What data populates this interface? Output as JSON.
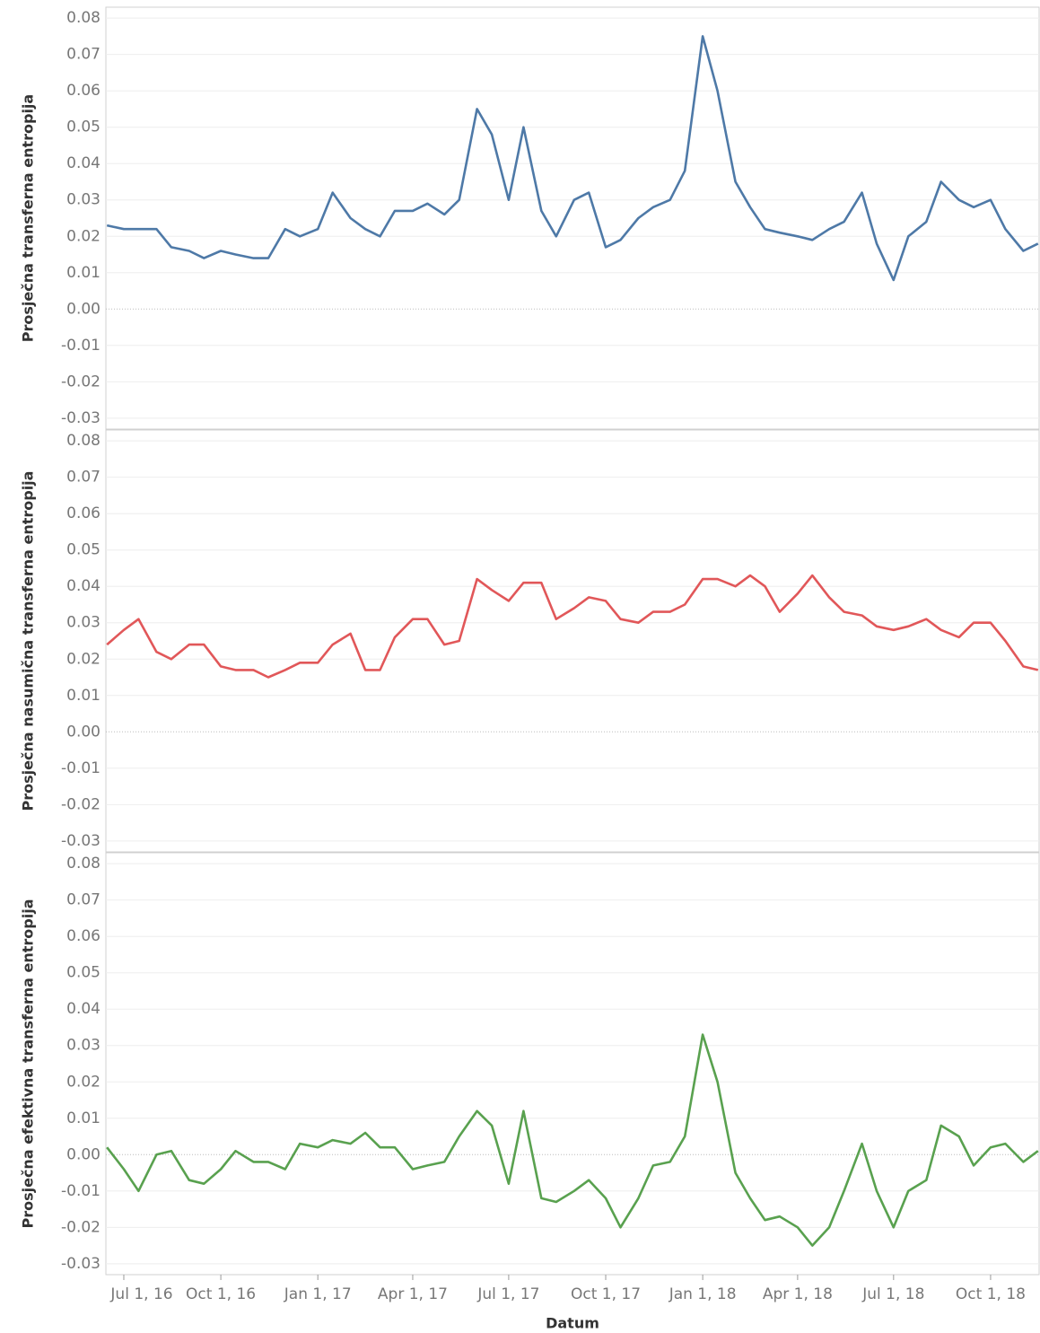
{
  "chart_data": [
    {
      "type": "line",
      "ylabel": "Prosječna transferna entropija",
      "color": "#4e79a7",
      "x": [
        "2016-06-15",
        "2016-07-01",
        "2016-07-15",
        "2016-08-01",
        "2016-08-15",
        "2016-09-01",
        "2016-09-15",
        "2016-10-01",
        "2016-10-15",
        "2016-11-01",
        "2016-11-15",
        "2016-12-01",
        "2016-12-15",
        "2017-01-01",
        "2017-01-15",
        "2017-02-01",
        "2017-02-15",
        "2017-03-01",
        "2017-03-15",
        "2017-04-01",
        "2017-04-15",
        "2017-05-01",
        "2017-05-15",
        "2017-06-01",
        "2017-06-15",
        "2017-07-01",
        "2017-07-15",
        "2017-08-01",
        "2017-08-15",
        "2017-09-01",
        "2017-09-15",
        "2017-10-01",
        "2017-10-15",
        "2017-11-01",
        "2017-11-15",
        "2017-12-01",
        "2017-12-15",
        "2018-01-01",
        "2018-01-15",
        "2018-02-01",
        "2018-02-15",
        "2018-03-01",
        "2018-03-15",
        "2018-04-01",
        "2018-04-15",
        "2018-05-01",
        "2018-05-15",
        "2018-06-01",
        "2018-06-15",
        "2018-07-01",
        "2018-07-15",
        "2018-08-01",
        "2018-08-15",
        "2018-09-01",
        "2018-09-15",
        "2018-10-01",
        "2018-10-15",
        "2018-11-01",
        "2018-11-15"
      ],
      "values": [
        0.023,
        0.022,
        0.022,
        0.022,
        0.017,
        0.016,
        0.014,
        0.016,
        0.015,
        0.014,
        0.014,
        0.022,
        0.02,
        0.022,
        0.032,
        0.025,
        0.022,
        0.02,
        0.027,
        0.027,
        0.029,
        0.026,
        0.03,
        0.055,
        0.048,
        0.03,
        0.05,
        0.027,
        0.02,
        0.03,
        0.032,
        0.017,
        0.019,
        0.025,
        0.028,
        0.03,
        0.038,
        0.075,
        0.06,
        0.035,
        0.028,
        0.022,
        0.021,
        0.02,
        0.019,
        0.022,
        0.024,
        0.032,
        0.018,
        0.008,
        0.02,
        0.024,
        0.035,
        0.03,
        0.028,
        0.03,
        0.022,
        0.016,
        0.018
      ],
      "xlim": [
        "2016-06-14",
        "2018-11-16"
      ],
      "ylim": [
        -0.033,
        0.083
      ],
      "yticks": [
        -0.03,
        -0.02,
        -0.01,
        {
          "value": 0,
          "label": "0.00"
        },
        0.01,
        0.02,
        0.03,
        0.04,
        0.05,
        0.06,
        0.07,
        0.08
      ],
      "grid": true
    },
    {
      "type": "line",
      "ylabel": "Prosječna nasumična transferna entropija",
      "color": "#e15759",
      "x": [
        "2016-06-15",
        "2016-07-01",
        "2016-07-15",
        "2016-08-01",
        "2016-08-15",
        "2016-09-01",
        "2016-09-15",
        "2016-10-01",
        "2016-10-15",
        "2016-11-01",
        "2016-11-15",
        "2016-12-01",
        "2016-12-15",
        "2017-01-01",
        "2017-01-15",
        "2017-02-01",
        "2017-02-15",
        "2017-03-01",
        "2017-03-15",
        "2017-04-01",
        "2017-04-15",
        "2017-05-01",
        "2017-05-15",
        "2017-06-01",
        "2017-06-15",
        "2017-07-01",
        "2017-07-15",
        "2017-08-01",
        "2017-08-15",
        "2017-09-01",
        "2017-09-15",
        "2017-10-01",
        "2017-10-15",
        "2017-11-01",
        "2017-11-15",
        "2017-12-01",
        "2017-12-15",
        "2018-01-01",
        "2018-01-15",
        "2018-02-01",
        "2018-02-15",
        "2018-03-01",
        "2018-03-15",
        "2018-04-01",
        "2018-04-15",
        "2018-05-01",
        "2018-05-15",
        "2018-06-01",
        "2018-06-15",
        "2018-07-01",
        "2018-07-15",
        "2018-08-01",
        "2018-08-15",
        "2018-09-01",
        "2018-09-15",
        "2018-10-01",
        "2018-10-15",
        "2018-11-01",
        "2018-11-15"
      ],
      "values": [
        0.024,
        0.028,
        0.031,
        0.022,
        0.02,
        0.024,
        0.024,
        0.018,
        0.017,
        0.017,
        0.015,
        0.017,
        0.019,
        0.019,
        0.024,
        0.027,
        0.017,
        0.017,
        0.026,
        0.031,
        0.031,
        0.024,
        0.025,
        0.042,
        0.039,
        0.036,
        0.041,
        0.041,
        0.031,
        0.034,
        0.037,
        0.036,
        0.031,
        0.03,
        0.033,
        0.033,
        0.035,
        0.042,
        0.042,
        0.04,
        0.043,
        0.04,
        0.033,
        0.038,
        0.043,
        0.037,
        0.033,
        0.032,
        0.029,
        0.028,
        0.029,
        0.031,
        0.028,
        0.026,
        0.03,
        0.03,
        0.025,
        0.018,
        0.017
      ],
      "xlim": [
        "2016-06-14",
        "2018-11-16"
      ],
      "ylim": [
        -0.033,
        0.083
      ],
      "yticks": [
        -0.03,
        -0.02,
        -0.01,
        {
          "value": 0,
          "label": "0.00"
        },
        0.01,
        0.02,
        0.03,
        0.04,
        0.05,
        0.06,
        0.07,
        0.08
      ],
      "grid": true
    },
    {
      "type": "line",
      "ylabel": "Prosječna efektivna transferna entropija",
      "xlabel": "Datum",
      "color": "#59a14f",
      "x": [
        "2016-06-15",
        "2016-07-01",
        "2016-07-15",
        "2016-08-01",
        "2016-08-15",
        "2016-09-01",
        "2016-09-15",
        "2016-10-01",
        "2016-10-15",
        "2016-11-01",
        "2016-11-15",
        "2016-12-01",
        "2016-12-15",
        "2017-01-01",
        "2017-01-15",
        "2017-02-01",
        "2017-02-15",
        "2017-03-01",
        "2017-03-15",
        "2017-04-01",
        "2017-04-15",
        "2017-05-01",
        "2017-05-15",
        "2017-06-01",
        "2017-06-15",
        "2017-07-01",
        "2017-07-15",
        "2017-08-01",
        "2017-08-15",
        "2017-09-01",
        "2017-09-15",
        "2017-10-01",
        "2017-10-15",
        "2017-11-01",
        "2017-11-15",
        "2017-12-01",
        "2017-12-15",
        "2018-01-01",
        "2018-01-15",
        "2018-02-01",
        "2018-02-15",
        "2018-03-01",
        "2018-03-15",
        "2018-04-01",
        "2018-04-15",
        "2018-05-01",
        "2018-05-15",
        "2018-06-01",
        "2018-06-15",
        "2018-07-01",
        "2018-07-15",
        "2018-08-01",
        "2018-08-15",
        "2018-09-01",
        "2018-09-15",
        "2018-10-01",
        "2018-10-15",
        "2018-11-01",
        "2018-11-15"
      ],
      "values": [
        0.002,
        -0.004,
        -0.01,
        0.0,
        0.001,
        -0.007,
        -0.008,
        -0.004,
        0.001,
        -0.002,
        -0.002,
        -0.004,
        0.003,
        0.002,
        0.004,
        0.003,
        0.006,
        0.002,
        0.002,
        -0.004,
        -0.003,
        -0.002,
        0.005,
        0.012,
        0.008,
        -0.008,
        0.012,
        -0.012,
        -0.013,
        -0.01,
        -0.007,
        -0.012,
        -0.02,
        -0.012,
        -0.003,
        -0.002,
        0.005,
        0.033,
        0.02,
        -0.005,
        -0.012,
        -0.018,
        -0.017,
        -0.02,
        -0.025,
        -0.02,
        -0.01,
        0.003,
        -0.01,
        -0.02,
        -0.01,
        -0.007,
        0.008,
        0.005,
        -0.003,
        0.002,
        0.003,
        -0.002,
        0.001
      ],
      "xlim": [
        "2016-06-14",
        "2018-11-16"
      ],
      "ylim": [
        -0.033,
        0.083
      ],
      "yticks": [
        -0.03,
        -0.02,
        -0.01,
        {
          "value": 0,
          "label": "0.00"
        },
        0.01,
        0.02,
        0.03,
        0.04,
        0.05,
        0.06,
        0.07,
        0.08
      ],
      "grid": true,
      "xticks": [
        {
          "value": "2016-07-01",
          "label": "Jul 1, 16"
        },
        {
          "value": "2016-10-01",
          "label": "Oct 1, 16"
        },
        {
          "value": "2017-01-01",
          "label": "Jan 1, 17"
        },
        {
          "value": "2017-04-01",
          "label": "Apr 1, 17"
        },
        {
          "value": "2017-07-01",
          "label": "Jul 1, 17"
        },
        {
          "value": "2017-10-01",
          "label": "Oct 1, 17"
        },
        {
          "value": "2018-01-01",
          "label": "Jan 1, 18"
        },
        {
          "value": "2018-04-01",
          "label": "Apr 1, 18"
        },
        {
          "value": "2018-07-01",
          "label": "Jul 1, 18"
        },
        {
          "value": "2018-10-01",
          "label": "Oct 1, 18"
        }
      ]
    }
  ]
}
